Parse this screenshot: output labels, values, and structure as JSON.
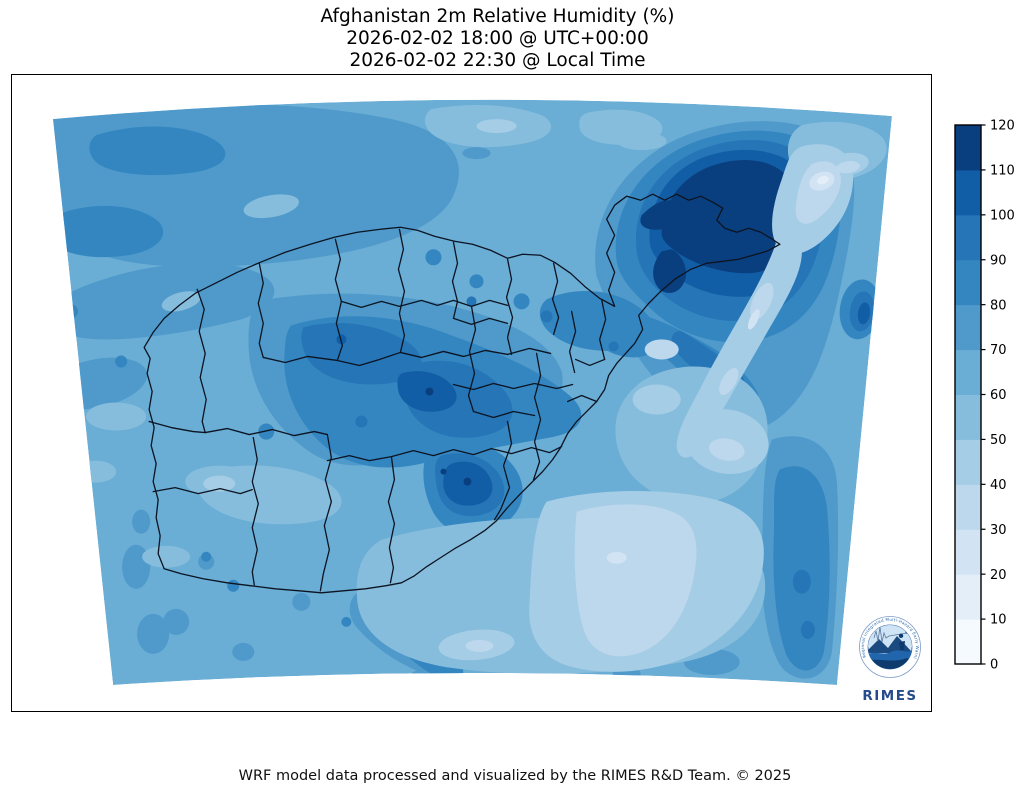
{
  "title": {
    "line1": "Afghanistan 2m Relative Humidity (%)",
    "line2": "2026-02-02 18:00 @ UTC+00:00",
    "line3": "2026-02-02 22:30 @ Local Time"
  },
  "footer": {
    "text": "WRF model data processed and visualized by the RIMES R&D Team. © 2025"
  },
  "logo": {
    "name": "RIMES",
    "ring_text": "Regional Integrated Multi-Hazard Early Warning System"
  },
  "map": {
    "region": "Afghanistan",
    "variable": "2m Relative Humidity",
    "units": "%",
    "base_level": "60-70",
    "boundary_color": "#0c1422",
    "frame_color": "#000000"
  },
  "colorbar": {
    "min": 0,
    "max": 120,
    "tick_step": 10,
    "ticks": [
      0,
      10,
      20,
      30,
      40,
      50,
      60,
      70,
      80,
      90,
      100,
      110,
      120
    ],
    "levels": [
      "0-10",
      "10-20",
      "20-30",
      "30-40",
      "40-50",
      "50-60",
      "60-70",
      "70-80",
      "80-90",
      "90-100",
      "100-110",
      "110-120"
    ],
    "palette": {
      "0-10": "#f5fafe",
      "10-20": "#e3eef9",
      "20-30": "#d2e3f3",
      "30-40": "#bdd7ec",
      "40-50": "#a5cde6",
      "50-60": "#87bddc",
      "60-70": "#6aadd5",
      "70-80": "#4f9acb",
      "80-90": "#3486c1",
      "90-100": "#2575b7",
      "100-110": "#125ea6",
      "110-120": "#0a3f7f"
    }
  }
}
